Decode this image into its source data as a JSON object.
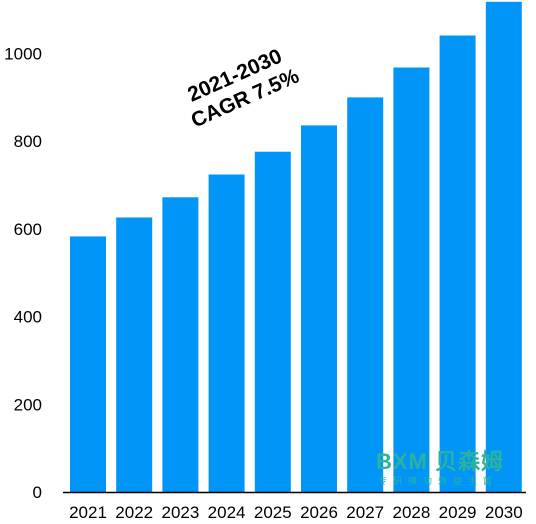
{
  "chart_data": {
    "type": "bar",
    "categories": [
      "2021",
      "2022",
      "2023",
      "2024",
      "2025",
      "2026",
      "2027",
      "2028",
      "2029",
      "2030"
    ],
    "values": [
      583,
      626,
      672,
      724,
      776,
      836,
      900,
      968,
      1041,
      1118
    ],
    "title": "",
    "xlabel": "",
    "ylabel": "",
    "ylim": [
      0,
      1118
    ],
    "yticks": [
      "0",
      "200",
      "400",
      "600",
      "800",
      "1000"
    ],
    "grid": false,
    "legend": "none",
    "bar_color": "#0095f6"
  },
  "annotation": {
    "line1": "2021-2030",
    "line2": "CAGR 7.5%"
  },
  "logo": {
    "main": "BXM 贝森姆",
    "sub": "专研微功效益生菌"
  }
}
